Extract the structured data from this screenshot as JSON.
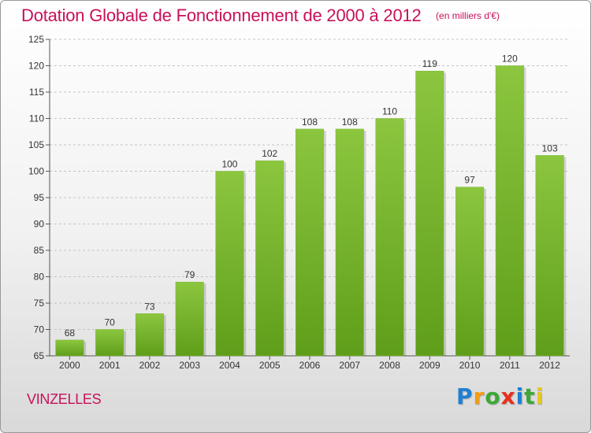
{
  "chart_data": {
    "type": "bar",
    "title": "Dotation Globale de Fonctionnement de 2000 à 2012",
    "subtitle": "(en milliers d'€)",
    "categories": [
      "2000",
      "2001",
      "2002",
      "2003",
      "2004",
      "2005",
      "2006",
      "2007",
      "2008",
      "2009",
      "2010",
      "2011",
      "2012"
    ],
    "values": [
      68,
      70,
      73,
      79,
      100,
      102,
      108,
      108,
      110,
      119,
      97,
      120,
      103
    ],
    "xlabel": "",
    "ylabel": "",
    "ylim": [
      65,
      125
    ],
    "yticks": [
      65,
      70,
      75,
      80,
      85,
      90,
      95,
      100,
      105,
      110,
      115,
      120,
      125
    ],
    "grid": "horizontal dashed",
    "bar_color": "#8cc63f",
    "bar_color_dark": "#5f9e1a"
  },
  "commune": "VINZELLES",
  "logo": {
    "letters": [
      "P",
      "r",
      "o",
      "x",
      "i",
      "t",
      "i"
    ],
    "colors": [
      "#1f7fd1",
      "#f39c12",
      "#3aa935",
      "#e8301c",
      "#1f7fd1",
      "#3aa935",
      "#e8c81c"
    ]
  }
}
